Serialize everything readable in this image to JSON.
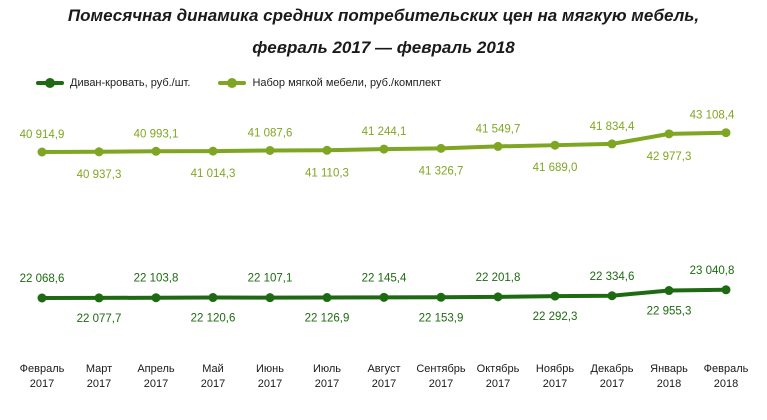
{
  "title_line1": "Помесячная динамика средних потребительских цен на мягкую мебель,",
  "title_line2": "февраль 2017 — февраль 2018",
  "chart_data": {
    "type": "line",
    "title": "Помесячная динамика средних потребительских цен на мягкую мебель, февраль 2017 — февраль 2018",
    "legend_placement": "top-left",
    "grid": false,
    "categories": [
      [
        "Февраль",
        "2017"
      ],
      [
        "Март",
        "2017"
      ],
      [
        "Апрель",
        "2017"
      ],
      [
        "Май",
        "2017"
      ],
      [
        "Июнь",
        "2017"
      ],
      [
        "Июль",
        "2017"
      ],
      [
        "Август",
        "2017"
      ],
      [
        "Сентябрь",
        "2017"
      ],
      [
        "Октябрь",
        "2017"
      ],
      [
        "Ноябрь",
        "2017"
      ],
      [
        "Декабрь",
        "2017"
      ],
      [
        "Январь",
        "2018"
      ],
      [
        "Февраль",
        "2018"
      ]
    ],
    "series": [
      {
        "name": "Диван-кровать, руб./шт.",
        "color": "#1e6a12",
        "values": [
          22068.6,
          22077.7,
          22103.8,
          22120.6,
          22107.1,
          22126.9,
          22145.4,
          22153.9,
          22201.8,
          22292.3,
          22334.6,
          22955.3,
          23040.8
        ],
        "labels": [
          "22 068,6",
          "22 077,7",
          "22 103,8",
          "22 120,6",
          "22 107,1",
          "22 126,9",
          "22 145,4",
          "22 153,9",
          "22 201,8",
          "22 292,3",
          "22 334,6",
          "22 955,3",
          "23 040,8"
        ]
      },
      {
        "name": "Набор мягкой мебели, руб./комплект",
        "color": "#7fa622",
        "values": [
          40914.9,
          40937.3,
          40993.1,
          41014.3,
          41087.6,
          41110.3,
          41244.1,
          41326.7,
          41549.7,
          41689.0,
          41834.4,
          42977.3,
          43108.4
        ],
        "labels": [
          "40 914,9",
          "40 937,3",
          "40 993,1",
          "41 014,3",
          "41 087,6",
          "41 110,3",
          "41 244,1",
          "41 326,7",
          "41 549,7",
          "41 689,0",
          "41 834,4",
          "42 977,3",
          "43 108,4"
        ]
      }
    ]
  }
}
